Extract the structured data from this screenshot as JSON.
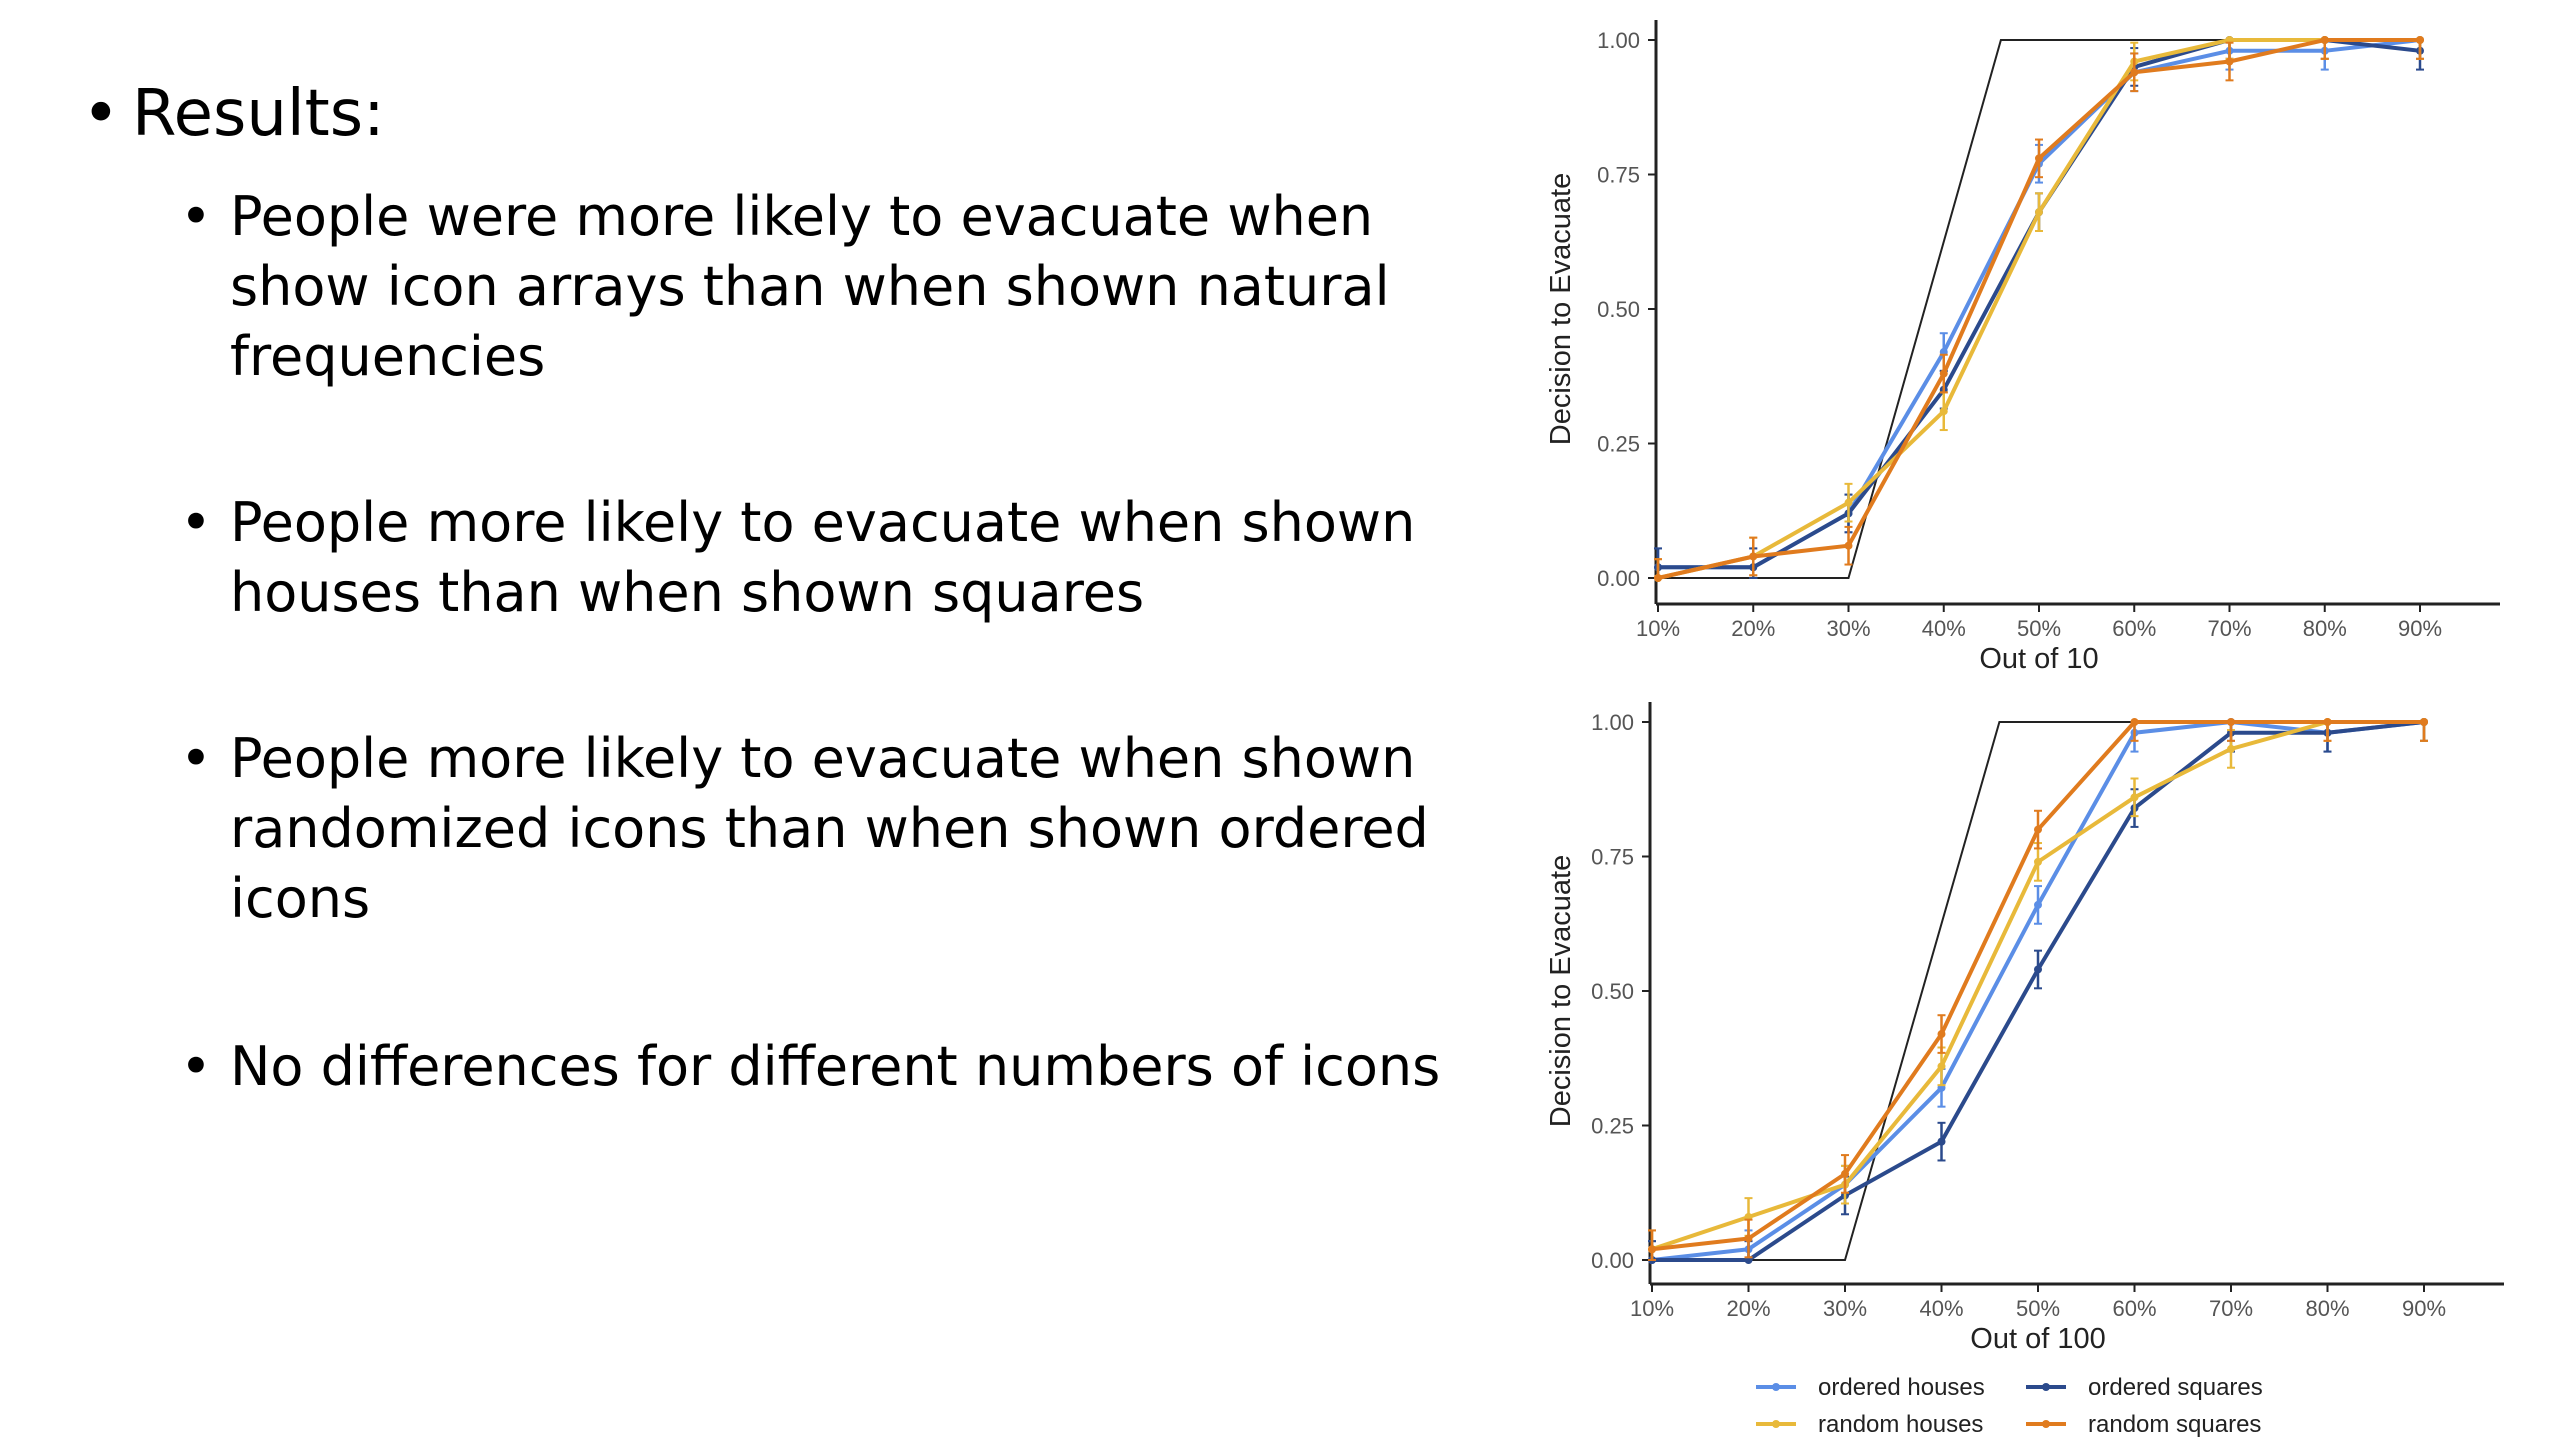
{
  "slide": {
    "heading": "Results:",
    "bullets": [
      "People were more likely to evacuate when show icon arrays than when shown natural frequencies",
      "People more likely to evacuate when shown houses than when shown squares",
      "People more likely to evacuate when shown randomized icons than when shown ordered icons",
      "No differences for different numbers of icons"
    ]
  },
  "chart_data": [
    {
      "type": "line",
      "xlabel": "Out of 10",
      "ylabel": "Decision to Evacuate",
      "categories": [
        "10%",
        "20%",
        "30%",
        "40%",
        "50%",
        "60%",
        "70%",
        "80%",
        "90%"
      ],
      "ylim": [
        0,
        1
      ],
      "yticks": [
        "0.00",
        "0.25",
        "0.50",
        "0.75",
        "1.00"
      ],
      "grid": false,
      "reference_line": [
        [
          0.1,
          0
        ],
        [
          0.3,
          0
        ],
        [
          0.46,
          1
        ],
        [
          0.9,
          1
        ]
      ],
      "series": [
        {
          "name": "ordered houses",
          "color": "#5b8ee6",
          "values": [
            0.02,
            0.02,
            0.12,
            0.42,
            0.77,
            0.94,
            0.98,
            0.98,
            1.0
          ]
        },
        {
          "name": "ordered squares",
          "color": "#2b4a8c",
          "values": [
            0.02,
            0.02,
            0.12,
            0.35,
            0.68,
            0.95,
            1.0,
            1.0,
            0.98
          ]
        },
        {
          "name": "random houses",
          "color": "#e8b93a",
          "values": [
            0.0,
            0.04,
            0.14,
            0.31,
            0.68,
            0.96,
            1.0,
            1.0,
            1.0
          ]
        },
        {
          "name": "random squares",
          "color": "#e07b1e",
          "values": [
            0.0,
            0.04,
            0.06,
            0.38,
            0.78,
            0.94,
            0.96,
            1.0,
            1.0
          ]
        }
      ]
    },
    {
      "type": "line",
      "xlabel": "Out of 100",
      "ylabel": "Decision to Evacuate",
      "categories": [
        "10%",
        "20%",
        "30%",
        "40%",
        "50%",
        "60%",
        "70%",
        "80%",
        "90%"
      ],
      "ylim": [
        0,
        1
      ],
      "yticks": [
        "0.00",
        "0.25",
        "0.50",
        "0.75",
        "1.00"
      ],
      "grid": false,
      "reference_line": [
        [
          0.1,
          0
        ],
        [
          0.3,
          0
        ],
        [
          0.46,
          1
        ],
        [
          0.9,
          1
        ]
      ],
      "series": [
        {
          "name": "ordered houses",
          "color": "#5b8ee6",
          "values": [
            0.0,
            0.02,
            0.14,
            0.32,
            0.66,
            0.98,
            1.0,
            0.98,
            1.0
          ]
        },
        {
          "name": "ordered squares",
          "color": "#2b4a8c",
          "values": [
            0.0,
            0.0,
            0.12,
            0.22,
            0.54,
            0.84,
            0.98,
            0.98,
            1.0
          ]
        },
        {
          "name": "random houses",
          "color": "#e8b93a",
          "values": [
            0.02,
            0.08,
            0.14,
            0.36,
            0.74,
            0.86,
            0.95,
            1.0,
            1.0
          ]
        },
        {
          "name": "random squares",
          "color": "#e07b1e",
          "values": [
            0.02,
            0.04,
            0.16,
            0.42,
            0.8,
            1.0,
            1.0,
            1.0,
            1.0
          ]
        }
      ],
      "legend": {
        "position": "bottom",
        "entries": [
          "ordered houses",
          "ordered squares",
          "random houses",
          "random squares"
        ]
      }
    }
  ]
}
